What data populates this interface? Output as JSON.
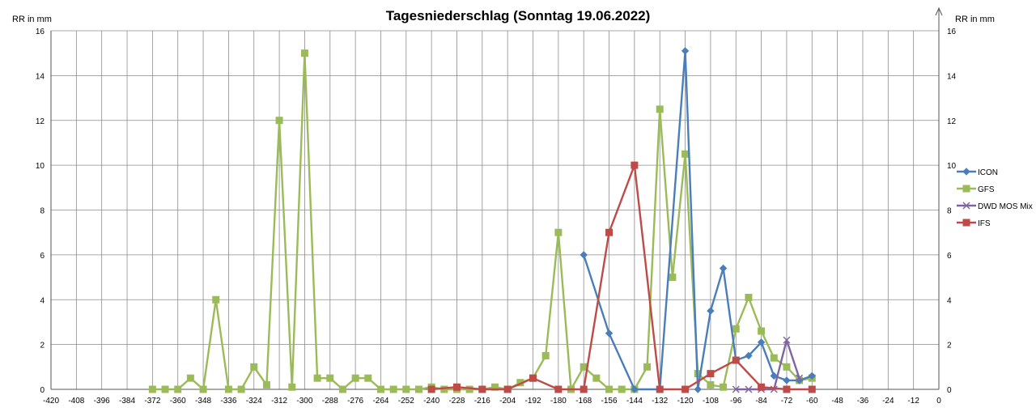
{
  "colors": {
    "ICON": "#4a7ebb",
    "GFS": "#9bbb59",
    "DWD MOS Mix": "#8064a2",
    "IFS": "#be4b48"
  },
  "chart_data": {
    "type": "line",
    "title": "Tagesniederschlag (Sonntag 19.06.2022)",
    "ylabel_left": "RR in mm",
    "ylabel_right": "RR in mm",
    "xlim": [
      -420,
      0
    ],
    "ylim": [
      0,
      16
    ],
    "x_ticks": [
      "-420",
      "-408",
      "-396",
      "-384",
      "-372",
      "-360",
      "-348",
      "-336",
      "-324",
      "-312",
      "-300",
      "-288",
      "-276",
      "-264",
      "-252",
      "-240",
      "-228",
      "-216",
      "-204",
      "-192",
      "-180",
      "-168",
      "-156",
      "-144",
      "-132",
      "-120",
      "-108",
      "-96",
      "-84",
      "-72",
      "-60",
      "-48",
      "-36",
      "-24",
      "-12",
      "0"
    ],
    "y_ticks": [
      "0",
      "2",
      "4",
      "6",
      "8",
      "10",
      "12",
      "14",
      "16"
    ],
    "grid": true,
    "legend_position": "right",
    "series": [
      {
        "name": "ICON",
        "marker": "diamond",
        "points": [
          [
            -168,
            6
          ],
          [
            -156,
            2.5
          ],
          [
            -144,
            0
          ],
          [
            -132,
            0
          ],
          [
            -120,
            15.1
          ],
          [
            -114,
            0
          ],
          [
            -108,
            3.5
          ],
          [
            -102,
            5.4
          ],
          [
            -96,
            1.3
          ],
          [
            -90,
            1.5
          ],
          [
            -84,
            2.1
          ],
          [
            -78,
            0.6
          ],
          [
            -72,
            0.4
          ],
          [
            -66,
            0.4
          ],
          [
            -60,
            0.6
          ]
        ]
      },
      {
        "name": "GFS",
        "marker": "square",
        "points": [
          [
            -372,
            0
          ],
          [
            -366,
            0
          ],
          [
            -360,
            0
          ],
          [
            -354,
            0.5
          ],
          [
            -348,
            0
          ],
          [
            -342,
            4
          ],
          [
            -336,
            0
          ],
          [
            -330,
            0
          ],
          [
            -324,
            1
          ],
          [
            -318,
            0.2
          ],
          [
            -312,
            12
          ],
          [
            -306,
            0.1
          ],
          [
            -300,
            15
          ],
          [
            -294,
            0.5
          ],
          [
            -288,
            0.5
          ],
          [
            -282,
            0
          ],
          [
            -276,
            0.5
          ],
          [
            -270,
            0.5
          ],
          [
            -264,
            0
          ],
          [
            -258,
            0
          ],
          [
            -252,
            0
          ],
          [
            -246,
            0
          ],
          [
            -240,
            0.1
          ],
          [
            -234,
            0
          ],
          [
            -228,
            0
          ],
          [
            -222,
            0
          ],
          [
            -216,
            0
          ],
          [
            -210,
            0.1
          ],
          [
            -204,
            0
          ],
          [
            -198,
            0.3
          ],
          [
            -192,
            0.5
          ],
          [
            -186,
            1.5
          ],
          [
            -180,
            7
          ],
          [
            -174,
            0
          ],
          [
            -168,
            1
          ],
          [
            -162,
            0.5
          ],
          [
            -156,
            0
          ],
          [
            -150,
            0
          ],
          [
            -144,
            0
          ],
          [
            -138,
            1
          ],
          [
            -132,
            12.5
          ],
          [
            -126,
            5
          ],
          [
            -120,
            10.5
          ],
          [
            -114,
            0.7
          ],
          [
            -108,
            0.2
          ],
          [
            -102,
            0.1
          ],
          [
            -96,
            2.7
          ],
          [
            -90,
            4.1
          ],
          [
            -84,
            2.6
          ],
          [
            -78,
            1.4
          ],
          [
            -72,
            1
          ],
          [
            -66,
            0.4
          ],
          [
            -60,
            0.5
          ]
        ]
      },
      {
        "name": "DWD MOS Mix",
        "marker": "x",
        "points": [
          [
            -96,
            0
          ],
          [
            -90,
            0
          ],
          [
            -84,
            0
          ],
          [
            -78,
            0
          ],
          [
            -72,
            2.2
          ],
          [
            -66,
            0.5
          ]
        ]
      },
      {
        "name": "IFS",
        "marker": "square",
        "points": [
          [
            -240,
            0
          ],
          [
            -228,
            0.1
          ],
          [
            -216,
            0
          ],
          [
            -204,
            0
          ],
          [
            -192,
            0.5
          ],
          [
            -180,
            0
          ],
          [
            -168,
            0
          ],
          [
            -156,
            7
          ],
          [
            -144,
            10
          ],
          [
            -132,
            0
          ],
          [
            -120,
            0
          ],
          [
            -108,
            0.7
          ],
          [
            -96,
            1.3
          ],
          [
            -84,
            0.1
          ],
          [
            -72,
            0
          ],
          [
            -60,
            0
          ]
        ]
      }
    ]
  }
}
